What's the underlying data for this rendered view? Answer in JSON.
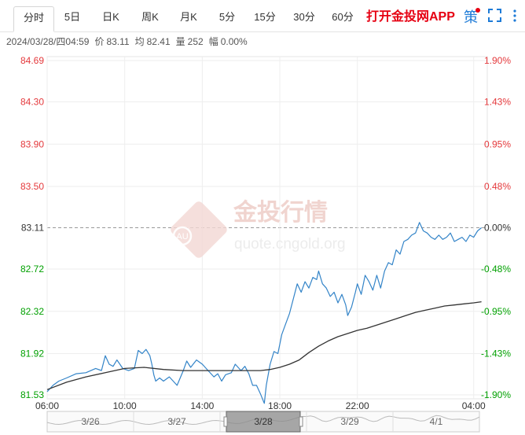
{
  "tabs": [
    {
      "label": "分时",
      "active": true
    },
    {
      "label": "5日"
    },
    {
      "label": "日K"
    },
    {
      "label": "周K"
    },
    {
      "label": "月K"
    },
    {
      "label": "5分"
    },
    {
      "label": "15分"
    },
    {
      "label": "30分"
    },
    {
      "label": "60分"
    }
  ],
  "promo_label": "打开金投网APP",
  "ce_label": "策",
  "icons": {
    "fullscreen": "fullscreen-icon",
    "more": "more-vertical-icon"
  },
  "info": {
    "datetime": "2024/03/28/四04:59",
    "price_label": "价",
    "price": "83.11",
    "avg_label": "均",
    "avg": "82.41",
    "vol_label": "量",
    "vol": "252",
    "pct_label": "幅",
    "pct": "0.00%"
  },
  "watermark": {
    "cn": "金投行情",
    "url": "quote.cngold.org",
    "logo": "AU"
  },
  "colors": {
    "up": "#e4393c",
    "down": "#00a000",
    "price_line": "#3384c8",
    "avg_line": "#333333",
    "ref_line": "#999999"
  },
  "chart_data": {
    "type": "line",
    "y_left_ticks": [
      "84.69",
      "84.30",
      "83.90",
      "83.50",
      "83.11",
      "82.72",
      "82.32",
      "81.92",
      "81.53"
    ],
    "y_right_ticks": [
      "1.90%",
      "1.43%",
      "0.95%",
      "0.48%",
      "0.00%",
      "-0.48%",
      "-0.95%",
      "-1.43%",
      "-1.90%"
    ],
    "ylim": [
      81.53,
      84.69
    ],
    "reference": 83.11,
    "x_ticks": [
      "06:00",
      "10:00",
      "14:00",
      "18:00",
      "22:00",
      "04:00"
    ],
    "x_hours": [
      0,
      4,
      8,
      12,
      16,
      22
    ],
    "x_range_hours": [
      0,
      22.7
    ],
    "series": [
      {
        "role": "price",
        "points": [
          [
            0,
            81.56
          ],
          [
            0.3,
            81.62
          ],
          [
            0.6,
            81.66
          ],
          [
            1.0,
            81.69
          ],
          [
            1.5,
            81.73
          ],
          [
            2.0,
            81.74
          ],
          [
            2.5,
            81.78
          ],
          [
            2.8,
            81.76
          ],
          [
            3.0,
            81.9
          ],
          [
            3.2,
            81.82
          ],
          [
            3.4,
            81.8
          ],
          [
            3.6,
            81.86
          ],
          [
            3.9,
            81.78
          ],
          [
            4.2,
            81.76
          ],
          [
            4.5,
            81.78
          ],
          [
            4.7,
            81.95
          ],
          [
            4.9,
            81.92
          ],
          [
            5.1,
            81.96
          ],
          [
            5.3,
            81.9
          ],
          [
            5.4,
            81.82
          ],
          [
            5.5,
            81.72
          ],
          [
            5.6,
            81.66
          ],
          [
            5.8,
            81.69
          ],
          [
            6.0,
            81.66
          ],
          [
            6.3,
            81.7
          ],
          [
            6.5,
            81.66
          ],
          [
            6.7,
            81.62
          ],
          [
            7.0,
            81.75
          ],
          [
            7.2,
            81.85
          ],
          [
            7.4,
            81.79
          ],
          [
            7.7,
            81.86
          ],
          [
            8.0,
            81.82
          ],
          [
            8.3,
            81.76
          ],
          [
            8.6,
            81.7
          ],
          [
            8.8,
            81.73
          ],
          [
            9.0,
            81.66
          ],
          [
            9.2,
            81.72
          ],
          [
            9.5,
            81.74
          ],
          [
            9.7,
            81.82
          ],
          [
            10.0,
            81.76
          ],
          [
            10.2,
            81.8
          ],
          [
            10.4,
            81.73
          ],
          [
            10.6,
            81.62
          ],
          [
            10.8,
            81.62
          ],
          [
            11.0,
            81.54
          ],
          [
            11.2,
            81.45
          ],
          [
            11.3,
            81.62
          ],
          [
            11.5,
            81.82
          ],
          [
            11.7,
            81.94
          ],
          [
            11.9,
            81.92
          ],
          [
            12.1,
            82.1
          ],
          [
            12.3,
            82.2
          ],
          [
            12.5,
            82.3
          ],
          [
            12.7,
            82.44
          ],
          [
            12.9,
            82.58
          ],
          [
            13.1,
            82.5
          ],
          [
            13.3,
            82.6
          ],
          [
            13.5,
            82.54
          ],
          [
            13.7,
            82.64
          ],
          [
            13.9,
            82.62
          ],
          [
            14.0,
            82.7
          ],
          [
            14.2,
            82.58
          ],
          [
            14.4,
            82.54
          ],
          [
            14.6,
            82.46
          ],
          [
            14.8,
            82.5
          ],
          [
            15.0,
            82.4
          ],
          [
            15.2,
            82.48
          ],
          [
            15.4,
            82.38
          ],
          [
            15.5,
            82.28
          ],
          [
            15.7,
            82.36
          ],
          [
            15.9,
            82.5
          ],
          [
            16.0,
            82.58
          ],
          [
            16.2,
            82.48
          ],
          [
            16.4,
            82.66
          ],
          [
            16.6,
            82.6
          ],
          [
            16.8,
            82.52
          ],
          [
            17.0,
            82.66
          ],
          [
            17.2,
            82.54
          ],
          [
            17.4,
            82.7
          ],
          [
            17.6,
            82.78
          ],
          [
            17.8,
            82.76
          ],
          [
            18.0,
            82.9
          ],
          [
            18.2,
            82.86
          ],
          [
            18.4,
            82.98
          ],
          [
            18.6,
            83.0
          ],
          [
            18.8,
            83.04
          ],
          [
            19.0,
            83.06
          ],
          [
            19.2,
            83.16
          ],
          [
            19.4,
            83.08
          ],
          [
            19.6,
            83.06
          ],
          [
            19.8,
            83.02
          ],
          [
            20.0,
            83.0
          ],
          [
            20.2,
            83.04
          ],
          [
            20.4,
            83.0
          ],
          [
            20.6,
            83.02
          ],
          [
            20.8,
            83.06
          ],
          [
            21.0,
            82.98
          ],
          [
            21.2,
            83.0
          ],
          [
            21.4,
            83.02
          ],
          [
            21.6,
            82.98
          ],
          [
            21.8,
            83.04
          ],
          [
            22.0,
            83.02
          ],
          [
            22.2,
            83.08
          ],
          [
            22.4,
            83.11
          ]
        ]
      },
      {
        "role": "average",
        "points": [
          [
            0,
            81.58
          ],
          [
            1,
            81.65
          ],
          [
            2,
            81.7
          ],
          [
            3,
            81.74
          ],
          [
            4,
            81.78
          ],
          [
            5,
            81.79
          ],
          [
            6,
            81.77
          ],
          [
            7,
            81.76
          ],
          [
            8,
            81.76
          ],
          [
            9,
            81.76
          ],
          [
            10,
            81.76
          ],
          [
            11,
            81.76
          ],
          [
            11.5,
            81.77
          ],
          [
            12,
            81.79
          ],
          [
            12.5,
            81.82
          ],
          [
            13,
            81.86
          ],
          [
            13.5,
            81.93
          ],
          [
            14,
            81.99
          ],
          [
            14.5,
            82.04
          ],
          [
            15,
            82.08
          ],
          [
            15.5,
            82.11
          ],
          [
            16,
            82.14
          ],
          [
            16.5,
            82.16
          ],
          [
            17,
            82.19
          ],
          [
            17.5,
            82.22
          ],
          [
            18,
            82.25
          ],
          [
            18.5,
            82.28
          ],
          [
            19,
            82.31
          ],
          [
            19.5,
            82.33
          ],
          [
            20,
            82.35
          ],
          [
            20.5,
            82.37
          ],
          [
            21,
            82.38
          ],
          [
            21.5,
            82.39
          ],
          [
            22,
            82.4
          ],
          [
            22.4,
            82.41
          ]
        ]
      }
    ]
  },
  "overview": {
    "dates": [
      "3/26",
      "3/27",
      "3/28",
      "3/29",
      "4/1"
    ],
    "selected_index": 2
  }
}
